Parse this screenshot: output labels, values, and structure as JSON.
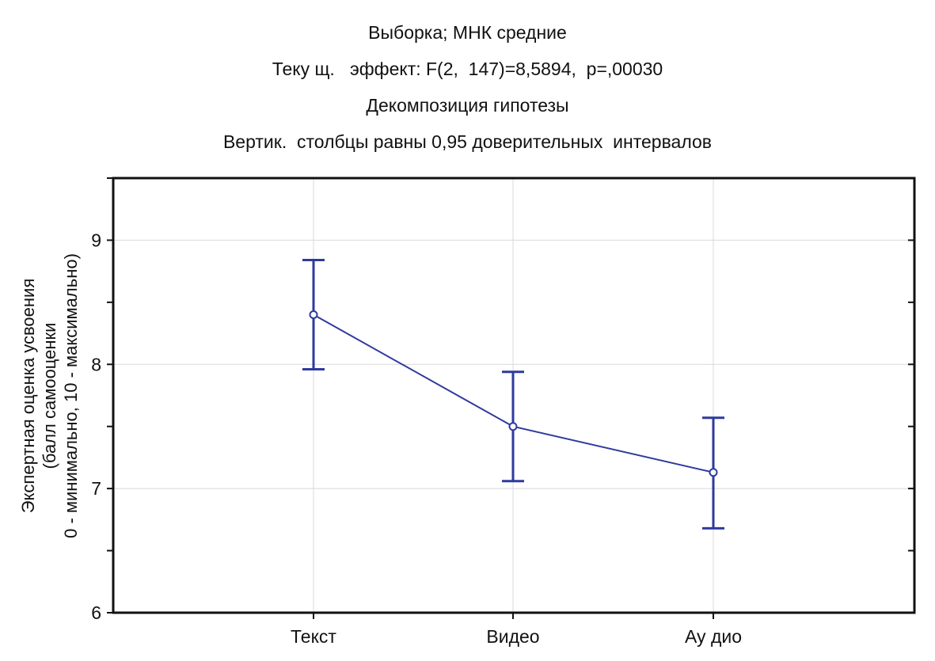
{
  "chart_data": {
    "type": "line",
    "title": "Выборка; МНК средние",
    "subtitle": [
      "Теку щ.   эффект: F(2,  147)=8,5894,  p=,00030",
      "Декомпозиция гипотезы",
      "Вертик.  столбцы равны 0,95 доверительных  интервалов"
    ],
    "xlabel": "",
    "ylabel": [
      "Экспертная оценка усвоения",
      "(балл самооценки",
      "0 - минимально, 10 - максимально)"
    ],
    "categories": [
      "Текст",
      "Видео",
      "Ау дио"
    ],
    "series": [
      {
        "values": [
          8.4,
          7.5,
          7.13
        ],
        "ci_lower": [
          7.96,
          7.06,
          6.68
        ],
        "ci_upper": [
          8.84,
          7.94,
          7.57
        ]
      }
    ],
    "ylim": [
      6,
      9.5
    ],
    "yticks": [
      6,
      7,
      8,
      9
    ],
    "grid": true,
    "line_color": "#2f3a9e"
  }
}
